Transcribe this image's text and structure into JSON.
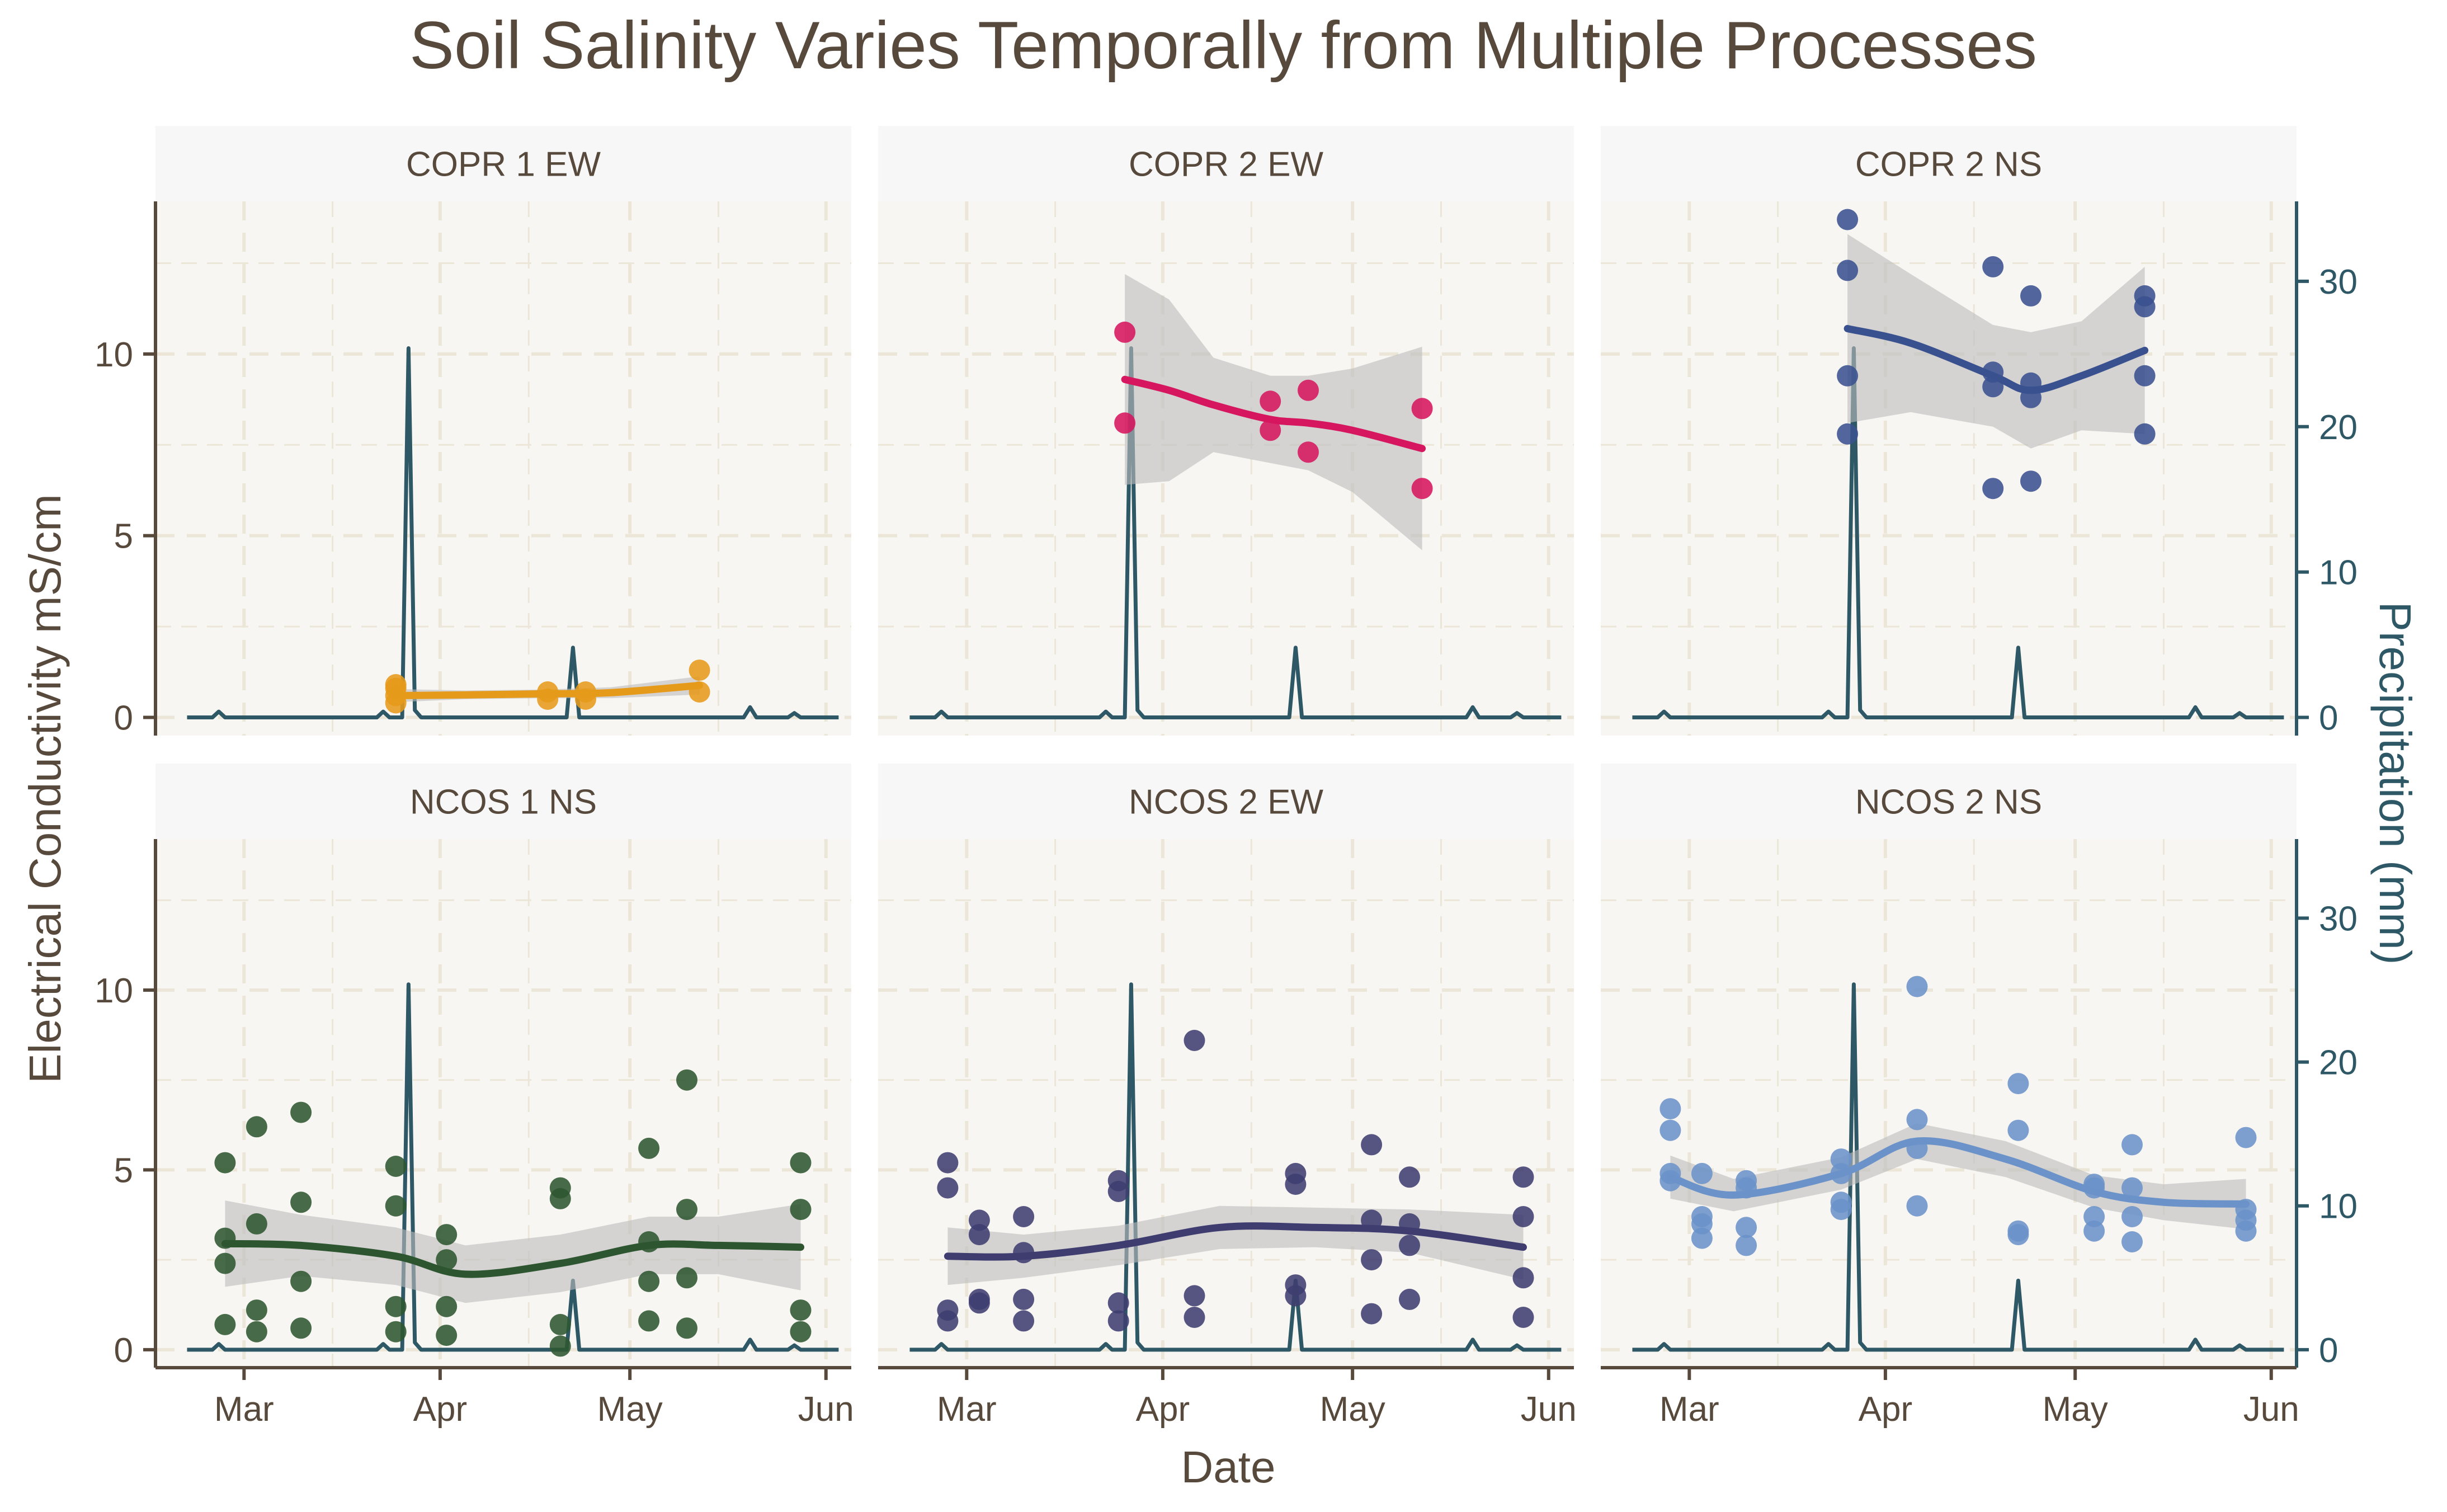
{
  "chart_data": {
    "type": "scatter",
    "title": "Soil Salinity Varies Temporally from Multiple Processes",
    "xlabel": "Date",
    "ylabel": "Electrical Conductivity mS/cm",
    "y2label": "Precipitation (mm)",
    "xlim": [
      "2023-02-15",
      "2023-06-05"
    ],
    "x_ticks": [
      {
        "date": "2023-03-01",
        "label": "Mar"
      },
      {
        "date": "2023-04-01",
        "label": "Apr"
      },
      {
        "date": "2023-05-01",
        "label": "May"
      },
      {
        "date": "2023-06-01",
        "label": "Jun"
      }
    ],
    "ylim": [
      -0.5,
      14.2
    ],
    "y_ticks": [
      0,
      5,
      10
    ],
    "y2lim": [
      -1.25,
      35.5
    ],
    "y2_ticks": [
      0,
      10,
      20,
      30
    ],
    "grid": true,
    "legend": "none",
    "colors": {
      "title": "#574a3c",
      "axis": "#574a3c",
      "precip": "#2e5866",
      "panel_bg": "#f8f6f2",
      "strip_bg": "#f7f7f7",
      "grid": "#ece6d8",
      "ribbon": "#bdbdbd"
    },
    "precipitation": {
      "dates": [
        "2023-02-20",
        "2023-02-24",
        "2023-02-25",
        "2023-02-26",
        "2023-03-22",
        "2023-03-23",
        "2023-03-24",
        "2023-03-26",
        "2023-03-27",
        "2023-03-28",
        "2023-03-29",
        "2023-03-30",
        "2023-04-21",
        "2023-04-22",
        "2023-04-23",
        "2023-04-24",
        "2023-05-19",
        "2023-05-20",
        "2023-05-21",
        "2023-05-26",
        "2023-05-27",
        "2023-05-28",
        "2023-06-03"
      ],
      "values": [
        0,
        0,
        0.4,
        0,
        0,
        0.4,
        0,
        0,
        25.4,
        0.5,
        0,
        0,
        0,
        4.8,
        0,
        0,
        0,
        0.7,
        0,
        0,
        0.3,
        0,
        0
      ]
    },
    "panels": [
      {
        "label": "COPR 1 EW",
        "color": "#e69a1a",
        "points": [
          [
            "2023-03-25",
            0.4
          ],
          [
            "2023-03-25",
            0.6
          ],
          [
            "2023-03-25",
            0.8
          ],
          [
            "2023-03-25",
            0.9
          ],
          [
            "2023-04-18",
            0.5
          ],
          [
            "2023-04-18",
            0.7
          ],
          [
            "2023-04-24",
            0.5
          ],
          [
            "2023-04-24",
            0.7
          ],
          [
            "2023-05-12",
            0.7
          ],
          [
            "2023-05-12",
            1.3
          ]
        ],
        "trend": [
          [
            "2023-03-25",
            0.6
          ],
          [
            "2023-04-05",
            0.62
          ],
          [
            "2023-04-18",
            0.65
          ],
          [
            "2023-04-28",
            0.68
          ],
          [
            "2023-05-12",
            0.88
          ]
        ],
        "band": [
          0.18,
          0.12,
          0.12,
          0.15,
          0.25
        ]
      },
      {
        "label": "COPR 2 EW",
        "color": "#d6165e",
        "points": [
          [
            "2023-03-26",
            10.6
          ],
          [
            "2023-03-26",
            8.1
          ],
          [
            "2023-04-18",
            8.7
          ],
          [
            "2023-04-18",
            7.9
          ],
          [
            "2023-04-24",
            9.0
          ],
          [
            "2023-04-24",
            7.3
          ],
          [
            "2023-05-12",
            8.5
          ],
          [
            "2023-05-12",
            6.3
          ]
        ],
        "trend": [
          [
            "2023-03-26",
            9.3
          ],
          [
            "2023-04-02",
            9.0
          ],
          [
            "2023-04-09",
            8.6
          ],
          [
            "2023-04-18",
            8.2
          ],
          [
            "2023-04-24",
            8.1
          ],
          [
            "2023-05-01",
            7.9
          ],
          [
            "2023-05-12",
            7.4
          ]
        ],
        "band": [
          2.9,
          2.5,
          1.3,
          1.2,
          1.3,
          1.7,
          2.8
        ]
      },
      {
        "label": "COPR 2 NS",
        "color": "#3a5190",
        "points": [
          [
            "2023-03-26",
            13.7
          ],
          [
            "2023-03-26",
            12.3
          ],
          [
            "2023-03-26",
            9.4
          ],
          [
            "2023-03-26",
            7.8
          ],
          [
            "2023-04-18",
            12.4
          ],
          [
            "2023-04-18",
            9.5
          ],
          [
            "2023-04-18",
            9.1
          ],
          [
            "2023-04-18",
            6.3
          ],
          [
            "2023-04-24",
            11.6
          ],
          [
            "2023-04-24",
            9.2
          ],
          [
            "2023-04-24",
            8.8
          ],
          [
            "2023-04-24",
            6.5
          ],
          [
            "2023-05-12",
            11.6
          ],
          [
            "2023-05-12",
            11.3
          ],
          [
            "2023-05-12",
            9.4
          ],
          [
            "2023-05-12",
            7.8
          ]
        ],
        "trend": [
          [
            "2023-03-26",
            10.7
          ],
          [
            "2023-04-05",
            10.3
          ],
          [
            "2023-04-18",
            9.4
          ],
          [
            "2023-04-24",
            9.0
          ],
          [
            "2023-05-02",
            9.4
          ],
          [
            "2023-05-12",
            10.1
          ]
        ],
        "band": [
          2.6,
          1.9,
          1.4,
          1.6,
          1.5,
          2.3
        ]
      },
      {
        "label": "NCOS 1 NS",
        "color": "#2d5630",
        "points": [
          [
            "2023-02-26",
            5.2
          ],
          [
            "2023-02-26",
            3.1
          ],
          [
            "2023-02-26",
            2.4
          ],
          [
            "2023-02-26",
            0.7
          ],
          [
            "2023-03-03",
            6.2
          ],
          [
            "2023-03-03",
            3.5
          ],
          [
            "2023-03-03",
            1.1
          ],
          [
            "2023-03-03",
            0.5
          ],
          [
            "2023-03-10",
            6.6
          ],
          [
            "2023-03-10",
            4.1
          ],
          [
            "2023-03-10",
            1.9
          ],
          [
            "2023-03-10",
            0.6
          ],
          [
            "2023-03-25",
            5.1
          ],
          [
            "2023-03-25",
            4.0
          ],
          [
            "2023-03-25",
            1.2
          ],
          [
            "2023-03-25",
            0.5
          ],
          [
            "2023-04-02",
            3.2
          ],
          [
            "2023-04-02",
            2.5
          ],
          [
            "2023-04-02",
            1.2
          ],
          [
            "2023-04-02",
            0.4
          ],
          [
            "2023-04-20",
            4.5
          ],
          [
            "2023-04-20",
            4.2
          ],
          [
            "2023-04-20",
            0.7
          ],
          [
            "2023-04-20",
            0.1
          ],
          [
            "2023-05-04",
            5.6
          ],
          [
            "2023-05-04",
            3.0
          ],
          [
            "2023-05-04",
            1.9
          ],
          [
            "2023-05-04",
            0.8
          ],
          [
            "2023-05-10",
            7.5
          ],
          [
            "2023-05-10",
            3.9
          ],
          [
            "2023-05-10",
            2.0
          ],
          [
            "2023-05-10",
            0.6
          ],
          [
            "2023-05-28",
            5.2
          ],
          [
            "2023-05-28",
            3.9
          ],
          [
            "2023-05-28",
            1.1
          ],
          [
            "2023-05-28",
            0.5
          ]
        ],
        "trend": [
          [
            "2023-02-26",
            2.95
          ],
          [
            "2023-03-10",
            2.9
          ],
          [
            "2023-03-25",
            2.6
          ],
          [
            "2023-04-05",
            2.1
          ],
          [
            "2023-04-20",
            2.4
          ],
          [
            "2023-05-04",
            2.9
          ],
          [
            "2023-05-15",
            2.9
          ],
          [
            "2023-05-28",
            2.85
          ]
        ],
        "band": [
          1.2,
          0.85,
          0.8,
          0.8,
          0.8,
          0.8,
          0.8,
          1.2
        ]
      },
      {
        "label": "NCOS 2 EW",
        "color": "#3f3d70",
        "points": [
          [
            "2023-02-26",
            5.2
          ],
          [
            "2023-02-26",
            4.5
          ],
          [
            "2023-02-26",
            1.1
          ],
          [
            "2023-02-26",
            0.8
          ],
          [
            "2023-03-03",
            3.6
          ],
          [
            "2023-03-03",
            3.2
          ],
          [
            "2023-03-03",
            1.4
          ],
          [
            "2023-03-03",
            1.3
          ],
          [
            "2023-03-10",
            3.7
          ],
          [
            "2023-03-10",
            2.7
          ],
          [
            "2023-03-10",
            1.4
          ],
          [
            "2023-03-10",
            0.8
          ],
          [
            "2023-03-25",
            4.7
          ],
          [
            "2023-03-25",
            4.4
          ],
          [
            "2023-03-25",
            1.3
          ],
          [
            "2023-03-25",
            0.8
          ],
          [
            "2023-04-06",
            8.6
          ],
          [
            "2023-04-06",
            1.5
          ],
          [
            "2023-04-06",
            0.9
          ],
          [
            "2023-04-22",
            4.9
          ],
          [
            "2023-04-22",
            4.6
          ],
          [
            "2023-04-22",
            1.8
          ],
          [
            "2023-04-22",
            1.5
          ],
          [
            "2023-05-04",
            5.7
          ],
          [
            "2023-05-04",
            3.6
          ],
          [
            "2023-05-04",
            2.5
          ],
          [
            "2023-05-04",
            1.0
          ],
          [
            "2023-05-10",
            4.8
          ],
          [
            "2023-05-10",
            3.5
          ],
          [
            "2023-05-10",
            2.9
          ],
          [
            "2023-05-10",
            1.4
          ],
          [
            "2023-05-28",
            4.8
          ],
          [
            "2023-05-28",
            3.7
          ],
          [
            "2023-05-28",
            2.0
          ],
          [
            "2023-05-28",
            0.9
          ]
        ],
        "trend": [
          [
            "2023-02-26",
            2.6
          ],
          [
            "2023-03-10",
            2.6
          ],
          [
            "2023-03-25",
            2.9
          ],
          [
            "2023-04-10",
            3.4
          ],
          [
            "2023-04-25",
            3.4
          ],
          [
            "2023-05-10",
            3.3
          ],
          [
            "2023-05-28",
            2.85
          ]
        ],
        "band": [
          0.8,
          0.6,
          0.55,
          0.6,
          0.55,
          0.6,
          0.9
        ]
      },
      {
        "label": "NCOS 2 NS",
        "color": "#6b93c9",
        "points": [
          [
            "2023-02-26",
            6.7
          ],
          [
            "2023-02-26",
            6.1
          ],
          [
            "2023-02-26",
            4.9
          ],
          [
            "2023-02-26",
            4.7
          ],
          [
            "2023-03-03",
            4.9
          ],
          [
            "2023-03-03",
            3.7
          ],
          [
            "2023-03-03",
            3.5
          ],
          [
            "2023-03-03",
            3.1
          ],
          [
            "2023-03-10",
            4.7
          ],
          [
            "2023-03-10",
            4.5
          ],
          [
            "2023-03-10",
            3.4
          ],
          [
            "2023-03-10",
            2.9
          ],
          [
            "2023-03-25",
            5.3
          ],
          [
            "2023-03-25",
            4.9
          ],
          [
            "2023-03-25",
            4.1
          ],
          [
            "2023-03-25",
            3.9
          ],
          [
            "2023-04-06",
            10.1
          ],
          [
            "2023-04-06",
            6.4
          ],
          [
            "2023-04-06",
            5.6
          ],
          [
            "2023-04-06",
            4.0
          ],
          [
            "2023-04-22",
            7.4
          ],
          [
            "2023-04-22",
            6.1
          ],
          [
            "2023-04-22",
            3.3
          ],
          [
            "2023-04-22",
            3.2
          ],
          [
            "2023-05-04",
            4.6
          ],
          [
            "2023-05-04",
            4.5
          ],
          [
            "2023-05-04",
            3.7
          ],
          [
            "2023-05-04",
            3.3
          ],
          [
            "2023-05-10",
            5.7
          ],
          [
            "2023-05-10",
            4.5
          ],
          [
            "2023-05-10",
            3.7
          ],
          [
            "2023-05-10",
            3.0
          ],
          [
            "2023-05-28",
            5.9
          ],
          [
            "2023-05-28",
            3.9
          ],
          [
            "2023-05-28",
            3.6
          ],
          [
            "2023-05-28",
            3.3
          ]
        ],
        "trend": [
          [
            "2023-02-26",
            4.8
          ],
          [
            "2023-03-08",
            4.3
          ],
          [
            "2023-03-25",
            4.9
          ],
          [
            "2023-04-06",
            5.8
          ],
          [
            "2023-04-20",
            5.3
          ],
          [
            "2023-05-04",
            4.4
          ],
          [
            "2023-05-15",
            4.1
          ],
          [
            "2023-05-28",
            4.05
          ]
        ],
        "band": [
          0.6,
          0.45,
          0.45,
          0.5,
          0.5,
          0.45,
          0.5,
          0.7
        ]
      }
    ]
  }
}
